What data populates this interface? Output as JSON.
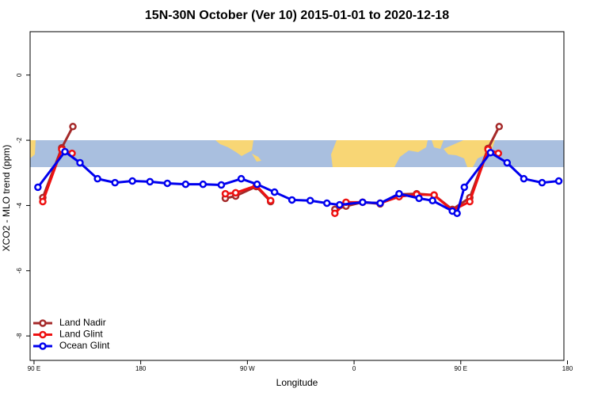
{
  "chart_data": {
    "type": "line",
    "title": "15N-30N October (Ver 10)   2015-01-01 to 2020-12-18",
    "x_label": "Longitude",
    "y_label": "XCO2 - MLO trend (ppm)",
    "xlim": [
      86.7,
      537.0
    ],
    "ylim": [
      -8.75,
      1.33
    ],
    "xticks": [
      {
        "value": 90,
        "label": "90 E"
      },
      {
        "value": 180,
        "label": "180"
      },
      {
        "value": 270,
        "label": "90 W"
      },
      {
        "value": 360,
        "label": "0"
      },
      {
        "value": 450,
        "label": "90 E"
      },
      {
        "value": 540,
        "label": "180"
      }
    ],
    "yticks": [
      0,
      -2,
      -4,
      -6,
      -8
    ],
    "legend": "bottom-left",
    "series": [
      {
        "name": "Land Nadir",
        "color": "#a52a2a",
        "x": [
          97.4,
          113.4,
          122.8,
          null,
          251.4,
          260.1,
          277.5,
          289.6,
          null,
          343.8,
          353.2,
          367.2,
          382.0,
          398.0,
          412.8,
          427.5,
          442.9,
          457.6,
          473.0,
          482.4
        ],
        "values": [
          -3.76,
          -2.23,
          -1.58,
          null,
          -3.78,
          -3.71,
          -3.42,
          -3.88,
          null,
          -4.12,
          -4.02,
          -3.9,
          -3.95,
          -3.66,
          -3.64,
          -3.68,
          -4.12,
          -3.76,
          -2.25,
          -1.58
        ]
      },
      {
        "name": "Land Glint",
        "color": "#ee1111",
        "x": [
          97.4,
          113.4,
          122.1,
          null,
          251.4,
          260.1,
          277.5,
          289.6,
          null,
          343.8,
          353.2,
          367.2,
          382.0,
          398.0,
          412.8,
          427.5,
          442.9,
          457.6,
          473.0,
          481.7
        ],
        "values": [
          -3.88,
          -2.28,
          -2.4,
          null,
          -3.64,
          -3.61,
          -3.39,
          -3.85,
          null,
          -4.24,
          -3.9,
          -3.9,
          -3.93,
          -3.73,
          -3.66,
          -3.68,
          -4.15,
          -3.88,
          -2.28,
          -2.4
        ]
      },
      {
        "name": "Ocean Glint",
        "color": "#0000ee",
        "x": [
          93.3,
          116.1,
          128.8,
          143.6,
          158.3,
          173.0,
          187.8,
          202.5,
          217.9,
          232.6,
          248.0,
          264.8,
          278.2,
          292.9,
          307.6,
          323.0,
          337.1,
          347.8,
          367.2,
          382.0,
          398.0,
          414.8,
          426.2,
          442.9,
          446.9,
          453.0,
          475.1,
          489.1,
          503.2,
          518.6,
          532.7
        ],
        "values": [
          -3.44,
          -2.35,
          -2.69,
          -3.18,
          -3.3,
          -3.25,
          -3.27,
          -3.32,
          -3.35,
          -3.35,
          -3.37,
          -3.18,
          -3.35,
          -3.59,
          -3.83,
          -3.85,
          -3.93,
          -3.98,
          -3.9,
          -3.93,
          -3.64,
          -3.78,
          -3.85,
          -4.17,
          -4.24,
          -3.44,
          -2.38,
          -2.69,
          -3.18,
          -3.3,
          -3.25
        ]
      }
    ]
  }
}
